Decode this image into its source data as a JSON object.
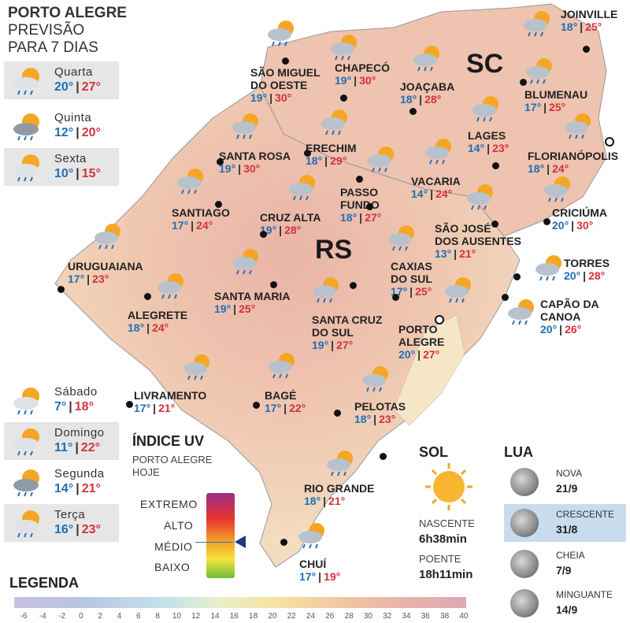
{
  "header": {
    "line1": "PORTO ALEGRE",
    "line2": "PREVISÃO",
    "line3": "PARA 7 DIAS"
  },
  "days": [
    {
      "name": "Quarta",
      "min": "20°",
      "max": "27°",
      "icon": "sun-cloud-rain-icon",
      "shaded": true
    },
    {
      "name": "Quinta",
      "min": "12°",
      "max": "20°",
      "icon": "storm-cloud-icon",
      "shaded": false
    },
    {
      "name": "Sexta",
      "min": "10°",
      "max": "15°",
      "icon": "sun-cloud-icon",
      "shaded": true
    },
    {
      "name": "Sábado",
      "min": "7°",
      "max": "18°",
      "icon": "sun-cloud-icon",
      "shaded": false
    },
    {
      "name": "Domingo",
      "min": "11°",
      "max": "22°",
      "icon": "sun-cloud-icon",
      "shaded": true
    },
    {
      "name": "Segunda",
      "min": "14°",
      "max": "21°",
      "icon": "cloud-rain-icon",
      "shaded": false
    },
    {
      "name": "Terça",
      "min": "16°",
      "max": "23°",
      "icon": "sun-cloud-storm-icon",
      "shaded": true
    }
  ],
  "states": {
    "sc": "SC",
    "rs": "RS"
  },
  "cities": [
    {
      "name": "SÃO MIGUEL\nDO OESTE",
      "min": "19°",
      "max": "30°"
    },
    {
      "name": "CHAPECÓ",
      "min": "19°",
      "max": "30°"
    },
    {
      "name": "JOAÇABA",
      "min": "18°",
      "max": "28°"
    },
    {
      "name": "JOINVILLE",
      "min": "18°",
      "max": "25°"
    },
    {
      "name": "BLUMENAU",
      "min": "17°",
      "max": "25°"
    },
    {
      "name": "LAGES",
      "min": "14°",
      "max": "23°"
    },
    {
      "name": "FLORIANÓPOLIS",
      "min": "18°",
      "max": "24°"
    },
    {
      "name": "SANTA ROSA",
      "min": "19°",
      "max": "30°"
    },
    {
      "name": "ERECHIM",
      "min": "18°",
      "max": "29°"
    },
    {
      "name": "VACARIA",
      "min": "14°",
      "max": "24°"
    },
    {
      "name": "PASSO\nFUNDO",
      "min": "18°",
      "max": "27°"
    },
    {
      "name": "SANTIAGO",
      "min": "17°",
      "max": "24°"
    },
    {
      "name": "CRUZ ALTA",
      "min": "19°",
      "max": "28°"
    },
    {
      "name": "SÃO JOSÉ\nDOS AUSENTES",
      "min": "13°",
      "max": "21°"
    },
    {
      "name": "CRICIÚMA",
      "min": "20°",
      "max": "30°"
    },
    {
      "name": "URUGUAIANA",
      "min": "17°",
      "max": "23°"
    },
    {
      "name": "TORRES",
      "min": "20°",
      "max": "28°"
    },
    {
      "name": "CAXIAS\nDO SUL",
      "min": "17°",
      "max": "25°"
    },
    {
      "name": "SANTA MARIA",
      "min": "19°",
      "max": "25°"
    },
    {
      "name": "ALEGRETE",
      "min": "18°",
      "max": "24°"
    },
    {
      "name": "CAPÃO DA\nCANOA",
      "min": "20°",
      "max": "26°"
    },
    {
      "name": "SANTA CRUZ\nDO SUL",
      "min": "19°",
      "max": "27°"
    },
    {
      "name": "PORTO\nALEGRE",
      "min": "20°",
      "max": "27°"
    },
    {
      "name": "LIVRAMENTO",
      "min": "17°",
      "max": "21°"
    },
    {
      "name": "BAGÉ",
      "min": "17°",
      "max": "22°"
    },
    {
      "name": "PELOTAS",
      "min": "18°",
      "max": "23°"
    },
    {
      "name": "RIO GRANDE",
      "min": "18°",
      "max": "21°"
    },
    {
      "name": "CHUÍ",
      "min": "17°",
      "max": "19°"
    }
  ],
  "uv": {
    "title": "ÍNDICE UV",
    "sub1": "PORTO ALEGRE",
    "sub2": "HOJE",
    "levels": [
      "EXTREMO",
      "ALTO",
      "MÉDIO",
      "BAIXO"
    ],
    "current": "MÉDIO"
  },
  "sun": {
    "title": "SOL",
    "rise_label": "NASCENTE",
    "rise": "6h38min",
    "set_label": "POENTE",
    "set": "18h11min"
  },
  "moon": {
    "title": "LUA",
    "phases": [
      {
        "name": "NOVA",
        "date": "21/9",
        "highlight": false
      },
      {
        "name": "CRESCENTE",
        "date": "31/8",
        "highlight": true
      },
      {
        "name": "CHEIA",
        "date": "7/9",
        "highlight": false
      },
      {
        "name": "MINGUANTE",
        "date": "14/9",
        "highlight": false
      }
    ]
  },
  "legend": {
    "title": "LEGENDA",
    "ticks": [
      "-6",
      "-4",
      "-2",
      "0",
      "2",
      "4",
      "6",
      "8",
      "10",
      "12",
      "14",
      "16",
      "18",
      "20",
      "22",
      "24",
      "26",
      "28",
      "30",
      "32",
      "34",
      "36",
      "38",
      "40"
    ]
  }
}
